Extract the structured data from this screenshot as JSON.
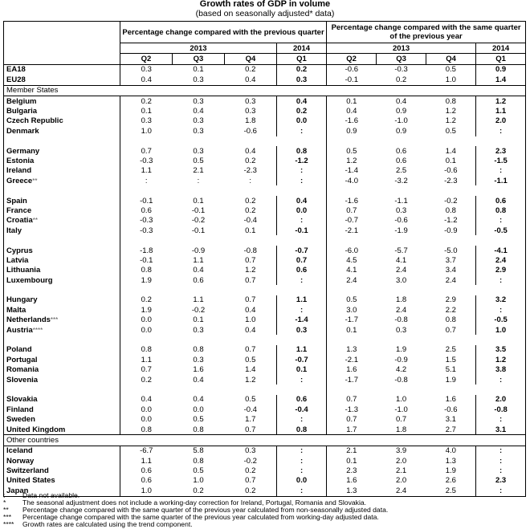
{
  "title": "Growth rates of GDP in volume",
  "subtitle": "(based on seasonally adjusted* data)",
  "headers": {
    "qoq": "Percentage change compared with the previous quarter",
    "yoy": "Percentage change compared with the same quarter of the previous year",
    "year2013": "2013",
    "year2014": "2014",
    "quarters": [
      "Q2",
      "Q3",
      "Q4",
      "Q1"
    ]
  },
  "rows": [
    {
      "type": "data",
      "name": "EA18",
      "sup": "",
      "qoq": [
        "0.3",
        "0.1",
        "0.2",
        "0.2"
      ],
      "yoy": [
        "-0.6",
        "-0.3",
        "0.5",
        "0.9"
      ]
    },
    {
      "type": "data",
      "name": "EU28",
      "sup": "",
      "qoq": [
        "0.4",
        "0.3",
        "0.4",
        "0.3"
      ],
      "yoy": [
        "-0.1",
        "0.2",
        "1.0",
        "1.4"
      ]
    },
    {
      "type": "group",
      "name": "Member States"
    },
    {
      "type": "data",
      "name": "Belgium",
      "sup": "",
      "qoq": [
        "0.2",
        "0.3",
        "0.3",
        "0.4"
      ],
      "yoy": [
        "0.1",
        "0.4",
        "0.8",
        "1.2"
      ]
    },
    {
      "type": "data",
      "name": "Bulgaria",
      "sup": "",
      "qoq": [
        "0.1",
        "0.4",
        "0.3",
        "0.2"
      ],
      "yoy": [
        "0.4",
        "0.9",
        "1.2",
        "1.1"
      ]
    },
    {
      "type": "data",
      "name": "Czech Republic",
      "sup": "",
      "qoq": [
        "0.3",
        "0.3",
        "1.8",
        "0.0"
      ],
      "yoy": [
        "-1.6",
        "-1.0",
        "1.2",
        "2.0"
      ]
    },
    {
      "type": "data",
      "name": "Denmark",
      "sup": "",
      "qoq": [
        "1.0",
        "0.3",
        "-0.6",
        ":"
      ],
      "yoy": [
        "0.9",
        "0.9",
        "0.5",
        ":"
      ]
    },
    {
      "type": "blank"
    },
    {
      "type": "data",
      "name": "Germany",
      "sup": "",
      "qoq": [
        "0.7",
        "0.3",
        "0.4",
        "0.8"
      ],
      "yoy": [
        "0.5",
        "0.6",
        "1.4",
        "2.3"
      ]
    },
    {
      "type": "data",
      "name": "Estonia",
      "sup": "",
      "qoq": [
        "-0.3",
        "0.5",
        "0.2",
        "-1.2"
      ],
      "yoy": [
        "1.2",
        "0.6",
        "0.1",
        "-1.5"
      ]
    },
    {
      "type": "data",
      "name": "Ireland",
      "sup": "",
      "qoq": [
        "1.1",
        "2.1",
        "-2.3",
        ":"
      ],
      "yoy": [
        "-1.4",
        "2.5",
        "-0.6",
        ":"
      ]
    },
    {
      "type": "data",
      "name": "Greece",
      "sup": "**",
      "qoq": [
        ":",
        ":",
        ":",
        ":"
      ],
      "yoy": [
        "-4.0",
        "-3.2",
        "-2.3",
        "-1.1"
      ]
    },
    {
      "type": "blank"
    },
    {
      "type": "data",
      "name": "Spain",
      "sup": "",
      "qoq": [
        "-0.1",
        "0.1",
        "0.2",
        "0.4"
      ],
      "yoy": [
        "-1.6",
        "-1.1",
        "-0.2",
        "0.6"
      ]
    },
    {
      "type": "data",
      "name": "France",
      "sup": "",
      "qoq": [
        "0.6",
        "-0.1",
        "0.2",
        "0.0"
      ],
      "yoy": [
        "0.7",
        "0.3",
        "0.8",
        "0.8"
      ]
    },
    {
      "type": "data",
      "name": "Croatia",
      "sup": "**",
      "qoq": [
        "-0.3",
        "-0.2",
        "-0.4",
        ":"
      ],
      "yoy": [
        "-0.7",
        "-0.6",
        "-1.2",
        ":"
      ]
    },
    {
      "type": "data",
      "name": "Italy",
      "sup": "",
      "qoq": [
        "-0.3",
        "-0.1",
        "0.1",
        "-0.1"
      ],
      "yoy": [
        "-2.1",
        "-1.9",
        "-0.9",
        "-0.5"
      ]
    },
    {
      "type": "blank"
    },
    {
      "type": "data",
      "name": "Cyprus",
      "sup": "",
      "qoq": [
        "-1.8",
        "-0.9",
        "-0.8",
        "-0.7"
      ],
      "yoy": [
        "-6.0",
        "-5.7",
        "-5.0",
        "-4.1"
      ]
    },
    {
      "type": "data",
      "name": "Latvia",
      "sup": "",
      "qoq": [
        "-0.1",
        "1.1",
        "0.7",
        "0.7"
      ],
      "yoy": [
        "4.5",
        "4.1",
        "3.7",
        "2.4"
      ]
    },
    {
      "type": "data",
      "name": "Lithuania",
      "sup": "",
      "qoq": [
        "0.8",
        "0.4",
        "1.2",
        "0.6"
      ],
      "yoy": [
        "4.1",
        "2.4",
        "3.4",
        "2.9"
      ]
    },
    {
      "type": "data",
      "name": "Luxembourg",
      "sup": "",
      "qoq": [
        "1.9",
        "0.6",
        "0.7",
        ":"
      ],
      "yoy": [
        "2.4",
        "3.0",
        "2.4",
        ":"
      ]
    },
    {
      "type": "blank"
    },
    {
      "type": "data",
      "name": "Hungary",
      "sup": "",
      "qoq": [
        "0.2",
        "1.1",
        "0.7",
        "1.1"
      ],
      "yoy": [
        "0.5",
        "1.8",
        "2.9",
        "3.2"
      ]
    },
    {
      "type": "data",
      "name": "Malta",
      "sup": "",
      "qoq": [
        "1.9",
        "-0.2",
        "0.4",
        ":"
      ],
      "yoy": [
        "3.0",
        "2.4",
        "2.2",
        ":"
      ]
    },
    {
      "type": "data",
      "name": "Netherlands",
      "sup": "***",
      "qoq": [
        "0.0",
        "0.1",
        "1.0",
        "-1.4"
      ],
      "yoy": [
        "-1.7",
        "-0.8",
        "0.8",
        "-0.5"
      ]
    },
    {
      "type": "data",
      "name": "Austria",
      "sup": "****",
      "qoq": [
        "0.0",
        "0.3",
        "0.4",
        "0.3"
      ],
      "yoy": [
        "0.1",
        "0.3",
        "0.7",
        "1.0"
      ]
    },
    {
      "type": "blank"
    },
    {
      "type": "data",
      "name": "Poland",
      "sup": "",
      "qoq": [
        "0.8",
        "0.8",
        "0.7",
        "1.1"
      ],
      "yoy": [
        "1.3",
        "1.9",
        "2.5",
        "3.5"
      ]
    },
    {
      "type": "data",
      "name": "Portugal",
      "sup": "",
      "qoq": [
        "1.1",
        "0.3",
        "0.5",
        "-0.7"
      ],
      "yoy": [
        "-2.1",
        "-0.9",
        "1.5",
        "1.2"
      ]
    },
    {
      "type": "data",
      "name": "Romania",
      "sup": "",
      "qoq": [
        "0.7",
        "1.6",
        "1.4",
        "0.1"
      ],
      "yoy": [
        "1.6",
        "4.2",
        "5.1",
        "3.8"
      ]
    },
    {
      "type": "data",
      "name": "Slovenia",
      "sup": "",
      "qoq": [
        "0.2",
        "0.4",
        "1.2",
        ":"
      ],
      "yoy": [
        "-1.7",
        "-0.8",
        "1.9",
        ":"
      ]
    },
    {
      "type": "blank"
    },
    {
      "type": "data",
      "name": "Slovakia",
      "sup": "",
      "qoq": [
        "0.4",
        "0.4",
        "0.5",
        "0.6"
      ],
      "yoy": [
        "0.7",
        "1.0",
        "1.6",
        "2.0"
      ]
    },
    {
      "type": "data",
      "name": "Finland",
      "sup": "",
      "qoq": [
        "0.0",
        "0.0",
        "-0.4",
        "-0.4"
      ],
      "yoy": [
        "-1.3",
        "-1.0",
        "-0.6",
        "-0.8"
      ]
    },
    {
      "type": "data",
      "name": "Sweden",
      "sup": "",
      "qoq": [
        "0.0",
        "0.5",
        "1.7",
        ":"
      ],
      "yoy": [
        "0.7",
        "0.7",
        "3.1",
        ":"
      ]
    },
    {
      "type": "data",
      "name": "United Kingdom",
      "sup": "",
      "qoq": [
        "0.8",
        "0.8",
        "0.7",
        "0.8"
      ],
      "yoy": [
        "1.7",
        "1.8",
        "2.7",
        "3.1"
      ]
    },
    {
      "type": "group",
      "name": "Other countries"
    },
    {
      "type": "data",
      "name": "Iceland",
      "sup": "",
      "qoq": [
        "-6.7",
        "5.8",
        "0.3",
        ":"
      ],
      "yoy": [
        "2.1",
        "3.9",
        "4.0",
        ":"
      ]
    },
    {
      "type": "data",
      "name": "Norway",
      "sup": "",
      "qoq": [
        "1.1",
        "0.8",
        "-0.2",
        ":"
      ],
      "yoy": [
        "0.1",
        "2.0",
        "1.3",
        ":"
      ]
    },
    {
      "type": "data",
      "name": "Switzerland",
      "sup": "",
      "qoq": [
        "0.6",
        "0.5",
        "0.2",
        ":"
      ],
      "yoy": [
        "2.3",
        "2.1",
        "1.9",
        ":"
      ]
    },
    {
      "type": "data",
      "name": "United States",
      "sup": "",
      "qoq": [
        "0.6",
        "1.0",
        "0.7",
        "0.0"
      ],
      "yoy": [
        "1.6",
        "2.0",
        "2.6",
        "2.3"
      ]
    },
    {
      "type": "data",
      "name": "Japan",
      "sup": "",
      "qoq": [
        "1.0",
        "0.2",
        "0.2",
        ":"
      ],
      "yoy": [
        "1.3",
        "2.4",
        "2.5",
        ":"
      ]
    }
  ],
  "notes": [
    {
      "sym": ":",
      "text": "Data not available."
    },
    {
      "sym": "*",
      "text": "The seasonal adjustment does not include a working-day correction for Ireland, Portugal, Romania and Slovakia."
    },
    {
      "sym": "**",
      "text": "Percentage change compared with the same quarter of the previous year calculated from non-seasonally adjusted data."
    },
    {
      "sym": "***",
      "text": "Percentage change compared with the same quarter of the previous year calculated from working-day adjusted data."
    },
    {
      "sym": "****",
      "text": "Growth rates are calculated using the trend component."
    }
  ]
}
